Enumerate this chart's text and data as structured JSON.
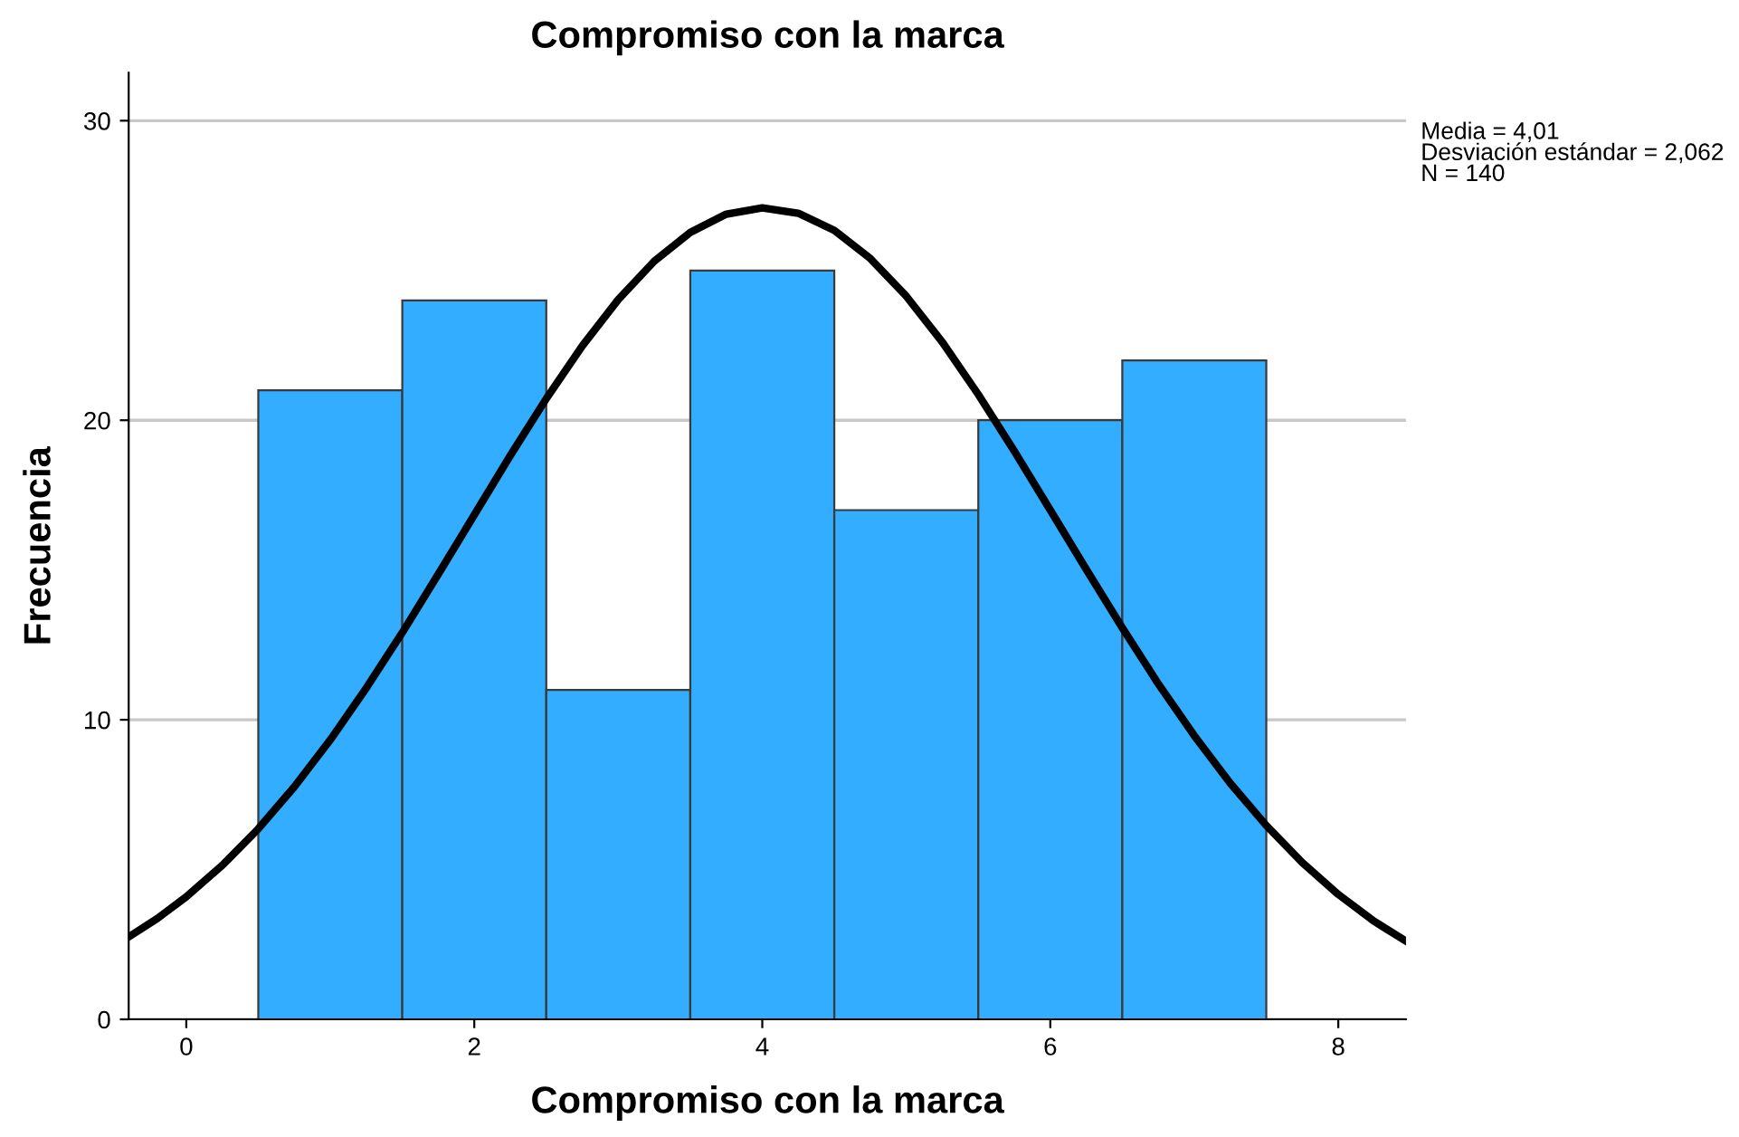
{
  "chart_data": {
    "type": "histogram",
    "title": "Compromiso con la marca",
    "xlabel": "Compromiso con la marca",
    "ylabel": "Frecuencia",
    "bins": [
      0.5,
      1.5,
      2.5,
      3.5,
      4.5,
      5.5,
      6.5,
      7.5
    ],
    "values": [
      21,
      24,
      11,
      25,
      17,
      20,
      22
    ],
    "color": "#33adff",
    "series": [
      {
        "type": "line",
        "color": "#000000",
        "x": [
          -0.4,
          -0.2,
          0,
          0.25,
          0.5,
          0.75,
          1,
          1.25,
          1.5,
          1.75,
          2,
          2.25,
          2.5,
          2.75,
          3,
          3.25,
          3.5,
          3.75,
          4,
          4.25,
          4.5,
          4.75,
          5,
          5.25,
          5.5,
          5.75,
          6,
          6.25,
          6.5,
          6.75,
          7,
          7.25,
          7.5,
          7.75,
          8,
          8.25,
          8.47
        ],
        "values": [
          2.75,
          3.37,
          4.09,
          5.14,
          6.36,
          7.76,
          9.33,
          11.06,
          12.91,
          14.86,
          16.84,
          18.82,
          20.72,
          22.48,
          24.03,
          25.31,
          26.27,
          26.88,
          27.09,
          26.91,
          26.34,
          25.4,
          24.14,
          22.61,
          20.86,
          18.97,
          17.0,
          15.02,
          13.07,
          11.2,
          9.47,
          7.88,
          6.47,
          5.23,
          4.17,
          3.27,
          2.61
        ]
      }
    ],
    "xlim": [
      -0.4,
      8.47
    ],
    "xticks": [
      0,
      2,
      4,
      6,
      8
    ],
    "ylim": [
      0,
      31.6
    ],
    "yticks": [
      0,
      10,
      20,
      30
    ],
    "grid": "y",
    "annotations": [
      "Media = 4,01",
      "Desviación estándar = 2,062",
      "N = 140"
    ]
  }
}
